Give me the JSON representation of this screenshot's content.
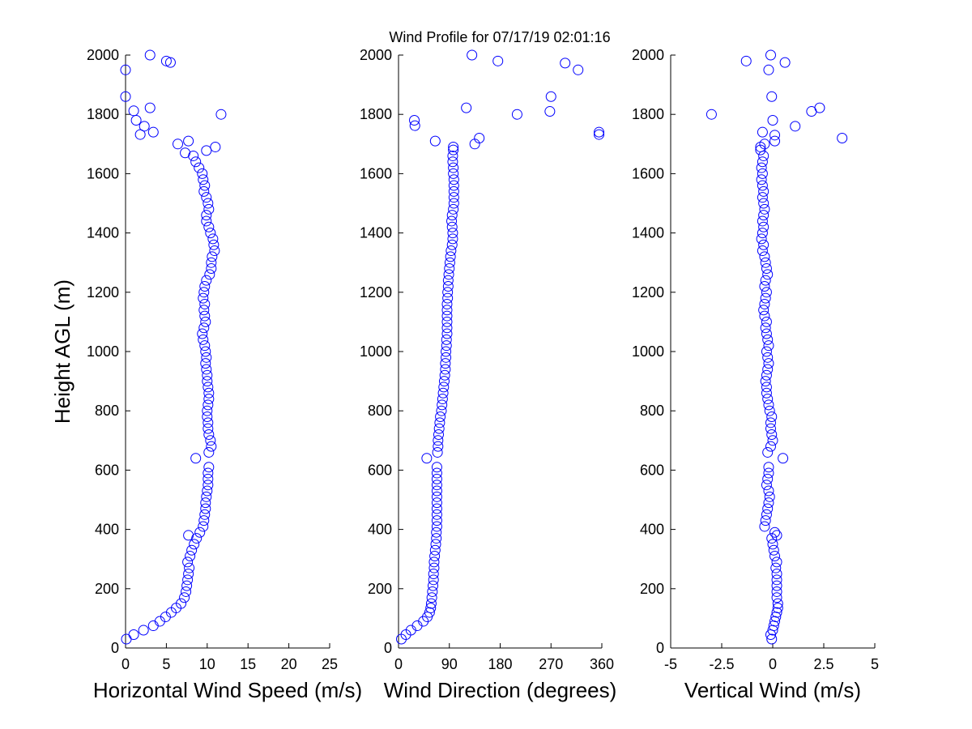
{
  "chart_data": [
    {
      "type": "scatter",
      "title": "Wind Profile for  07/17/19 02:01:16",
      "xlabel": "Horizontal Wind Speed (m/s)",
      "ylabel": "Height AGL (m)",
      "xlim": [
        0,
        25
      ],
      "ylim": [
        0,
        2000
      ],
      "xticks": [
        "0",
        "5",
        "10",
        "15",
        "20",
        "25"
      ],
      "xtick_values": [
        0,
        5,
        10,
        15,
        20,
        25
      ],
      "yticks": [
        "0",
        "200",
        "400",
        "600",
        "800",
        "1000",
        "1200",
        "1400",
        "1600",
        "1800",
        "2000"
      ],
      "marker_color": "#0000ff",
      "marker": "open-circle",
      "grid": false,
      "points": [
        [
          0.1,
          30
        ],
        [
          1,
          45
        ],
        [
          2.2,
          60
        ],
        [
          3.4,
          75
        ],
        [
          4.2,
          90
        ],
        [
          4.9,
          105
        ],
        [
          5.6,
          120
        ],
        [
          6.2,
          135
        ],
        [
          6.8,
          150
        ],
        [
          7.2,
          170
        ],
        [
          7.4,
          190
        ],
        [
          7.5,
          210
        ],
        [
          7.6,
          230
        ],
        [
          7.7,
          250
        ],
        [
          7.8,
          270
        ],
        [
          7.6,
          290
        ],
        [
          7.9,
          310
        ],
        [
          8.1,
          330
        ],
        [
          8.4,
          350
        ],
        [
          8.7,
          370
        ],
        [
          7.7,
          380
        ],
        [
          9.1,
          390
        ],
        [
          9.5,
          410
        ],
        [
          9.6,
          430
        ],
        [
          9.7,
          450
        ],
        [
          9.8,
          470
        ],
        [
          9.8,
          490
        ],
        [
          9.9,
          510
        ],
        [
          10,
          530
        ],
        [
          10.1,
          550
        ],
        [
          10.1,
          570
        ],
        [
          10.1,
          590
        ],
        [
          10.2,
          610
        ],
        [
          8.6,
          640
        ],
        [
          10.2,
          660
        ],
        [
          10.5,
          680
        ],
        [
          10.4,
          700
        ],
        [
          10.2,
          720
        ],
        [
          10.1,
          740
        ],
        [
          10.1,
          760
        ],
        [
          10,
          780
        ],
        [
          10,
          800
        ],
        [
          10.1,
          820
        ],
        [
          10.2,
          840
        ],
        [
          10.2,
          860
        ],
        [
          10.1,
          880
        ],
        [
          10,
          900
        ],
        [
          10,
          920
        ],
        [
          9.9,
          940
        ],
        [
          9.8,
          960
        ],
        [
          9.9,
          980
        ],
        [
          9.8,
          1000
        ],
        [
          9.7,
          1020
        ],
        [
          9.5,
          1040
        ],
        [
          9.4,
          1060
        ],
        [
          9.6,
          1080
        ],
        [
          9.8,
          1100
        ],
        [
          9.7,
          1120
        ],
        [
          9.6,
          1140
        ],
        [
          9.7,
          1160
        ],
        [
          9.5,
          1180
        ],
        [
          9.6,
          1200
        ],
        [
          9.7,
          1220
        ],
        [
          9.9,
          1240
        ],
        [
          10.3,
          1260
        ],
        [
          10.5,
          1280
        ],
        [
          10.5,
          1300
        ],
        [
          10.6,
          1320
        ],
        [
          10.9,
          1340
        ],
        [
          10.8,
          1360
        ],
        [
          10.7,
          1380
        ],
        [
          10.4,
          1400
        ],
        [
          10.2,
          1420
        ],
        [
          9.9,
          1440
        ],
        [
          9.9,
          1460
        ],
        [
          10.2,
          1480
        ],
        [
          10.1,
          1500
        ],
        [
          9.9,
          1520
        ],
        [
          9.6,
          1540
        ],
        [
          9.7,
          1560
        ],
        [
          9.5,
          1580
        ],
        [
          9.4,
          1600
        ],
        [
          9,
          1620
        ],
        [
          8.6,
          1640
        ],
        [
          8.3,
          1660
        ],
        [
          7.3,
          1670
        ],
        [
          9.9,
          1678
        ],
        [
          11,
          1690
        ],
        [
          6.4,
          1700
        ],
        [
          7.7,
          1710
        ],
        [
          1.8,
          1732
        ],
        [
          3.4,
          1740
        ],
        [
          2.3,
          1760
        ],
        [
          1.3,
          1780
        ],
        [
          11.7,
          1800
        ],
        [
          1,
          1812
        ],
        [
          3,
          1822
        ],
        [
          0,
          1860
        ],
        [
          0,
          1950
        ],
        [
          5.5,
          1975
        ],
        [
          5,
          1980
        ],
        [
          3,
          2000
        ]
      ]
    },
    {
      "type": "scatter",
      "xlabel": "Wind Direction (degrees)",
      "xlim": [
        0,
        360
      ],
      "ylim": [
        0,
        2000
      ],
      "xticks": [
        "0",
        "90",
        "180",
        "270",
        "360"
      ],
      "xtick_values": [
        0,
        90,
        180,
        270,
        360
      ],
      "yticks": [
        "0",
        "200",
        "400",
        "600",
        "800",
        "1000",
        "1200",
        "1400",
        "1600",
        "1800",
        "2000"
      ],
      "marker_color": "#0000ff",
      "marker": "open-circle",
      "grid": false,
      "points": [
        [
          5,
          30
        ],
        [
          13,
          45
        ],
        [
          22,
          60
        ],
        [
          33,
          75
        ],
        [
          44,
          90
        ],
        [
          51,
          105
        ],
        [
          55,
          120
        ],
        [
          57,
          135
        ],
        [
          58,
          150
        ],
        [
          59,
          170
        ],
        [
          60,
          190
        ],
        [
          61,
          210
        ],
        [
          62,
          230
        ],
        [
          62,
          250
        ],
        [
          63,
          270
        ],
        [
          63,
          290
        ],
        [
          64,
          310
        ],
        [
          65,
          330
        ],
        [
          66,
          350
        ],
        [
          67,
          370
        ],
        [
          67,
          390
        ],
        [
          68,
          410
        ],
        [
          68,
          430
        ],
        [
          68,
          450
        ],
        [
          68,
          470
        ],
        [
          68,
          490
        ],
        [
          68,
          510
        ],
        [
          68,
          530
        ],
        [
          68,
          550
        ],
        [
          68,
          570
        ],
        [
          68,
          590
        ],
        [
          68,
          610
        ],
        [
          50,
          640
        ],
        [
          69,
          660
        ],
        [
          70,
          680
        ],
        [
          70,
          700
        ],
        [
          71,
          720
        ],
        [
          72,
          740
        ],
        [
          73,
          760
        ],
        [
          74,
          780
        ],
        [
          76,
          800
        ],
        [
          77,
          820
        ],
        [
          78,
          840
        ],
        [
          79,
          860
        ],
        [
          80,
          880
        ],
        [
          81,
          900
        ],
        [
          82,
          920
        ],
        [
          83,
          940
        ],
        [
          83,
          960
        ],
        [
          84,
          980
        ],
        [
          84,
          1000
        ],
        [
          85,
          1020
        ],
        [
          85,
          1040
        ],
        [
          86,
          1060
        ],
        [
          86,
          1080
        ],
        [
          86,
          1100
        ],
        [
          86,
          1120
        ],
        [
          86,
          1140
        ],
        [
          86,
          1160
        ],
        [
          87,
          1180
        ],
        [
          87,
          1200
        ],
        [
          88,
          1220
        ],
        [
          88,
          1240
        ],
        [
          89,
          1260
        ],
        [
          90,
          1280
        ],
        [
          91,
          1300
        ],
        [
          92,
          1320
        ],
        [
          93,
          1340
        ],
        [
          95,
          1360
        ],
        [
          96,
          1380
        ],
        [
          96,
          1400
        ],
        [
          95,
          1420
        ],
        [
          94,
          1440
        ],
        [
          95,
          1460
        ],
        [
          97,
          1480
        ],
        [
          98,
          1500
        ],
        [
          98,
          1520
        ],
        [
          98,
          1540
        ],
        [
          98,
          1560
        ],
        [
          98,
          1580
        ],
        [
          97,
          1600
        ],
        [
          97,
          1620
        ],
        [
          96,
          1640
        ],
        [
          96,
          1660
        ],
        [
          97,
          1680
        ],
        [
          97,
          1690
        ],
        [
          135,
          1700
        ],
        [
          65,
          1710
        ],
        [
          143,
          1720
        ],
        [
          355,
          1732
        ],
        [
          355,
          1740
        ],
        [
          29,
          1762
        ],
        [
          28,
          1780
        ],
        [
          210,
          1800
        ],
        [
          268,
          1810
        ],
        [
          120,
          1822
        ],
        [
          270,
          1860
        ],
        [
          318,
          1950
        ],
        [
          295,
          1973
        ],
        [
          176,
          1980
        ],
        [
          130,
          2000
        ]
      ]
    },
    {
      "type": "scatter",
      "xlabel": "Vertical Wind (m/s)",
      "xlim": [
        -5,
        5
      ],
      "ylim": [
        0,
        2000
      ],
      "xticks": [
        "-5",
        "-2.5",
        "0",
        "2.5",
        "5"
      ],
      "xtick_values": [
        -5,
        -2.5,
        0,
        2.5,
        5
      ],
      "yticks": [
        "0",
        "200",
        "400",
        "600",
        "800",
        "1000",
        "1200",
        "1400",
        "1600",
        "1800",
        "2000"
      ],
      "marker_color": "#0000ff",
      "marker": "open-circle",
      "grid": false,
      "points": [
        [
          -0.05,
          30
        ],
        [
          -0.1,
          45
        ],
        [
          0,
          60
        ],
        [
          0.05,
          75
        ],
        [
          0.1,
          90
        ],
        [
          0.15,
          105
        ],
        [
          0.2,
          120
        ],
        [
          0.25,
          135
        ],
        [
          0.25,
          150
        ],
        [
          0.2,
          170
        ],
        [
          0.2,
          190
        ],
        [
          0.2,
          210
        ],
        [
          0.2,
          230
        ],
        [
          0.2,
          250
        ],
        [
          0.15,
          270
        ],
        [
          0.2,
          290
        ],
        [
          0.1,
          310
        ],
        [
          0.05,
          330
        ],
        [
          0,
          350
        ],
        [
          -0.05,
          370
        ],
        [
          0.2,
          380
        ],
        [
          0.1,
          390
        ],
        [
          -0.4,
          410
        ],
        [
          -0.35,
          430
        ],
        [
          -0.3,
          450
        ],
        [
          -0.25,
          470
        ],
        [
          -0.2,
          490
        ],
        [
          -0.15,
          510
        ],
        [
          -0.2,
          530
        ],
        [
          -0.3,
          550
        ],
        [
          -0.25,
          570
        ],
        [
          -0.2,
          590
        ],
        [
          -0.2,
          610
        ],
        [
          0.5,
          640
        ],
        [
          -0.25,
          660
        ],
        [
          -0.1,
          680
        ],
        [
          0,
          700
        ],
        [
          -0.05,
          720
        ],
        [
          -0.1,
          740
        ],
        [
          -0.1,
          760
        ],
        [
          -0.05,
          780
        ],
        [
          -0.15,
          800
        ],
        [
          -0.2,
          820
        ],
        [
          -0.25,
          840
        ],
        [
          -0.3,
          860
        ],
        [
          -0.3,
          880
        ],
        [
          -0.35,
          900
        ],
        [
          -0.3,
          920
        ],
        [
          -0.25,
          940
        ],
        [
          -0.2,
          960
        ],
        [
          -0.25,
          980
        ],
        [
          -0.3,
          1000
        ],
        [
          -0.2,
          1020
        ],
        [
          -0.25,
          1040
        ],
        [
          -0.3,
          1060
        ],
        [
          -0.35,
          1080
        ],
        [
          -0.3,
          1100
        ],
        [
          -0.4,
          1120
        ],
        [
          -0.45,
          1140
        ],
        [
          -0.4,
          1160
        ],
        [
          -0.35,
          1180
        ],
        [
          -0.3,
          1200
        ],
        [
          -0.4,
          1220
        ],
        [
          -0.35,
          1240
        ],
        [
          -0.25,
          1260
        ],
        [
          -0.3,
          1280
        ],
        [
          -0.35,
          1300
        ],
        [
          -0.4,
          1320
        ],
        [
          -0.5,
          1340
        ],
        [
          -0.45,
          1360
        ],
        [
          -0.55,
          1380
        ],
        [
          -0.5,
          1400
        ],
        [
          -0.45,
          1420
        ],
        [
          -0.5,
          1440
        ],
        [
          -0.45,
          1460
        ],
        [
          -0.4,
          1480
        ],
        [
          -0.45,
          1500
        ],
        [
          -0.5,
          1520
        ],
        [
          -0.45,
          1540
        ],
        [
          -0.5,
          1560
        ],
        [
          -0.55,
          1580
        ],
        [
          -0.5,
          1600
        ],
        [
          -0.55,
          1620
        ],
        [
          -0.5,
          1640
        ],
        [
          -0.45,
          1660
        ],
        [
          -0.6,
          1680
        ],
        [
          -0.6,
          1690
        ],
        [
          -0.4,
          1700
        ],
        [
          0.1,
          1710
        ],
        [
          3.4,
          1720
        ],
        [
          0.1,
          1730
        ],
        [
          -0.5,
          1740
        ],
        [
          1.1,
          1760
        ],
        [
          0,
          1780
        ],
        [
          -3,
          1800
        ],
        [
          1.9,
          1810
        ],
        [
          2.3,
          1822
        ],
        [
          -0.05,
          1860
        ],
        [
          -0.2,
          1950
        ],
        [
          0.6,
          1975
        ],
        [
          -1.3,
          1980
        ],
        [
          -0.1,
          2000
        ]
      ]
    }
  ]
}
